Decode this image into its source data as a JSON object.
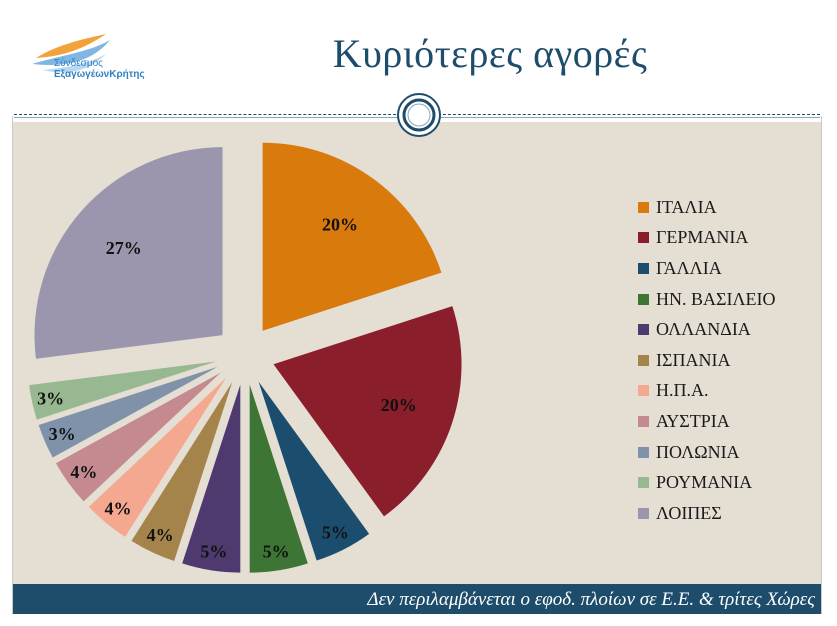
{
  "header": {
    "logo_line1": "Σύνδεσμος",
    "logo_line2": "ΕξαγωγέωνΚρήτης",
    "title": "Κυριότερες αγορές"
  },
  "footer": {
    "note": "Δεν περιλαμβάνεται ο εφοδ. πλοίων σε Ε.Ε. & τρίτες Χώρες"
  },
  "colors": {
    "title": "#1e4d6b",
    "footer_bg": "#1e4d6b",
    "content_bg": "#e4ded3"
  },
  "chart_data": {
    "type": "pie",
    "exploded": true,
    "legend_position": "right",
    "categories": [
      "ΙΤΑΛΙΑ",
      "ΓΕΡΜΑΝΙΑ",
      "ΓΑΛΛΙΑ",
      "ΗΝ. ΒΑΣΙΛΕΙΟ",
      "ΟΛΛΑΝΔΙΑ",
      "ΙΣΠΑΝΙΑ",
      "Η.Π.Α.",
      "ΑΥΣΤΡΙΑ",
      "ΠΟΛΩΝΙΑ",
      "ΡΟΥΜΑΝΙΑ",
      "ΛΟΙΠΕΣ"
    ],
    "values": [
      20,
      20,
      5,
      5,
      5,
      4,
      4,
      4,
      3,
      3,
      27
    ],
    "data_labels": [
      "20%",
      "20%",
      "5%",
      "5%",
      "5%",
      "4%",
      "4%",
      "4%",
      "3%",
      "3%",
      "27%"
    ],
    "colors": [
      "#d97a0c",
      "#8b1e2b",
      "#1a4d6e",
      "#3d7535",
      "#4e3a6e",
      "#a5844c",
      "#f4a890",
      "#c48a90",
      "#8092aa",
      "#97b890",
      "#9b95ad"
    ]
  }
}
